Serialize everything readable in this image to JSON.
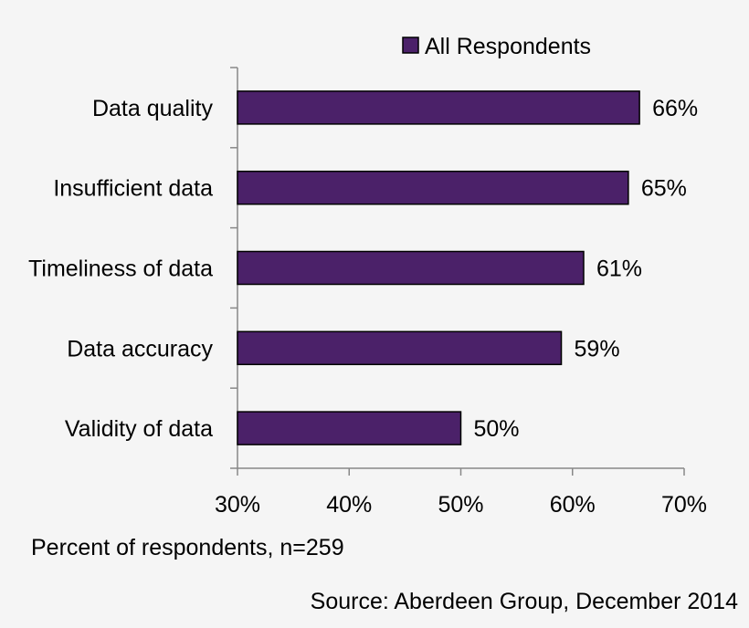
{
  "chart_data": {
    "type": "bar",
    "orientation": "horizontal",
    "categories": [
      "Data quality",
      "Insufficient data",
      "Timeliness of data",
      "Data accuracy",
      "Validity of data"
    ],
    "series": [
      {
        "name": "All Respondents",
        "values": [
          66,
          65,
          61,
          59,
          50
        ],
        "color": "#4b2169"
      }
    ],
    "data_labels": [
      "66%",
      "65%",
      "61%",
      "59%",
      "50%"
    ],
    "x_ticks": [
      30,
      40,
      50,
      60,
      70
    ],
    "x_tick_labels": [
      "30%",
      "40%",
      "50%",
      "60%",
      "70%"
    ],
    "xlim": [
      30,
      70
    ],
    "xlabel": "Percent of respondents, n=259",
    "source": "Source: Aberdeen Group, December 2014",
    "legend_position": "top-right",
    "grid": false
  }
}
